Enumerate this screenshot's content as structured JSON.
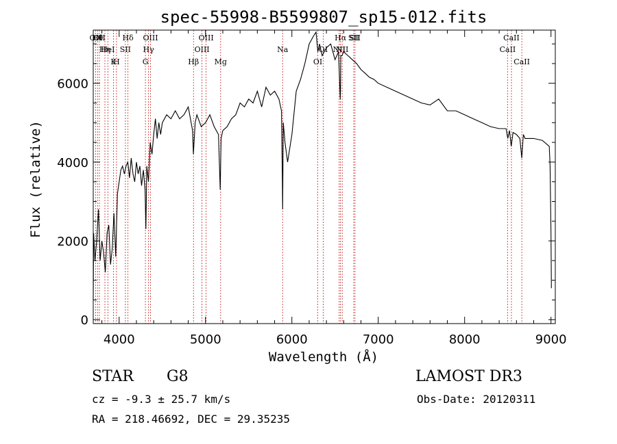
{
  "chart_data": {
    "type": "line",
    "title": "spec-55998-B5599807_sp15-012.fits",
    "xlabel": "Wavelength (Å)",
    "ylabel": "Flux (relative)",
    "xlim": [
      3700,
      9050
    ],
    "ylim": [
      -100,
      7350
    ],
    "xticks": [
      4000,
      5000,
      6000,
      7000,
      8000,
      9000
    ],
    "yticks": [
      0,
      2000,
      4000,
      6000
    ],
    "series": [
      {
        "name": "flux",
        "x": [
          3700,
          3705,
          3720,
          3740,
          3760,
          3780,
          3800,
          3820,
          3840,
          3860,
          3880,
          3900,
          3920,
          3940,
          3960,
          3980,
          4000,
          4020,
          4040,
          4060,
          4080,
          4100,
          4120,
          4140,
          4160,
          4180,
          4200,
          4220,
          4240,
          4260,
          4280,
          4300,
          4310,
          4320,
          4340,
          4360,
          4380,
          4400,
          4420,
          4440,
          4460,
          4480,
          4500,
          4550,
          4600,
          4650,
          4700,
          4750,
          4800,
          4850,
          4860,
          4880,
          4900,
          4950,
          5000,
          5050,
          5100,
          5150,
          5170,
          5180,
          5200,
          5250,
          5300,
          5350,
          5400,
          5450,
          5500,
          5550,
          5600,
          5650,
          5700,
          5750,
          5800,
          5850,
          5880,
          5890,
          5893,
          5896,
          5900,
          5920,
          5950,
          6000,
          6050,
          6100,
          6150,
          6200,
          6250,
          6280,
          6300,
          6320,
          6350,
          6400,
          6450,
          6500,
          6540,
          6560,
          6563,
          6566,
          6580,
          6600,
          6650,
          6700,
          6750,
          6800,
          6850,
          6900,
          6950,
          7000,
          7100,
          7200,
          7300,
          7400,
          7500,
          7600,
          7700,
          7800,
          7900,
          8000,
          8100,
          8200,
          8300,
          8400,
          8480,
          8500,
          8520,
          8540,
          8560,
          8600,
          8640,
          8662,
          8680,
          8700,
          8800,
          8900,
          8980,
          8990,
          9000,
          9005
        ],
        "values": [
          500,
          2200,
          1500,
          2000,
          2800,
          1500,
          2000,
          1700,
          1200,
          2200,
          2400,
          1400,
          1800,
          2700,
          1600,
          3200,
          3500,
          3800,
          3900,
          3700,
          3900,
          4000,
          3600,
          4100,
          3700,
          3500,
          4000,
          3700,
          3900,
          3400,
          3800,
          3300,
          2300,
          3900,
          3500,
          4500,
          4200,
          4700,
          5100,
          4600,
          5000,
          4700,
          5000,
          5200,
          5100,
          5300,
          5100,
          5200,
          5400,
          4800,
          4200,
          5000,
          5200,
          4900,
          5000,
          5200,
          4900,
          4700,
          3300,
          4600,
          4800,
          4900,
          5100,
          5200,
          5500,
          5400,
          5600,
          5500,
          5800,
          5400,
          5900,
          5700,
          5800,
          5600,
          5300,
          3500,
          2800,
          3800,
          5000,
          4500,
          4000,
          4700,
          5800,
          6100,
          6500,
          7000,
          7200,
          7300,
          6800,
          7000,
          6700,
          6900,
          7000,
          6600,
          6800,
          5600,
          5800,
          6700,
          6700,
          6800,
          6700,
          6600,
          6500,
          6350,
          6250,
          6150,
          6100,
          6000,
          5900,
          5800,
          5700,
          5600,
          5500,
          5450,
          5600,
          5300,
          5300,
          5200,
          5100,
          5000,
          4900,
          4850,
          4850,
          4600,
          4800,
          4400,
          4750,
          4700,
          4600,
          4100,
          4700,
          4600,
          4600,
          4550,
          4400,
          3900,
          2200,
          800
        ]
      }
    ],
    "lines": [
      {
        "wl": 3727,
        "label": "OII"
      },
      {
        "wl": 3750,
        "label": "Hθ"
      },
      {
        "wl": 3771,
        "label": "OII"
      },
      {
        "wl": 3835,
        "label": "Hη"
      },
      {
        "wl": 3869,
        "label": "HeI"
      },
      {
        "wl": 3934,
        "label": "K"
      },
      {
        "wl": 3969,
        "label": "H"
      },
      {
        "wl": 4072,
        "label": "SII"
      },
      {
        "wl": 4102,
        "label": "Hδ"
      },
      {
        "wl": 4304,
        "label": "G"
      },
      {
        "wl": 4340,
        "label": "Hγ"
      },
      {
        "wl": 4363,
        "label": "OIII"
      },
      {
        "wl": 4861,
        "label": "Hβ"
      },
      {
        "wl": 4959,
        "label": "OIII"
      },
      {
        "wl": 5007,
        "label": "OIII"
      },
      {
        "wl": 5175,
        "label": "Mg"
      },
      {
        "wl": 5893,
        "label": "Na"
      },
      {
        "wl": 6300,
        "label": "OI"
      },
      {
        "wl": 6363,
        "label": "OI"
      },
      {
        "wl": 6548,
        "label": "NII"
      },
      {
        "wl": 6563,
        "label": "Hα"
      },
      {
        "wl": 6583,
        "label": "NII"
      },
      {
        "wl": 6716,
        "label": "SII"
      },
      {
        "wl": 6731,
        "label": "SII"
      },
      {
        "wl": 8498,
        "label": "CaII"
      },
      {
        "wl": 8542,
        "label": "CaII"
      },
      {
        "wl": 8662,
        "label": "CaII"
      }
    ]
  },
  "info": {
    "classification": "STAR",
    "subclass": "G8",
    "survey": "LAMOST DR3",
    "cz": "cz = -9.3 ± 25.7 km/s",
    "obs_date": "Obs-Date: 20120311",
    "coords": "RA = 218.46692, DEC =  29.35235"
  },
  "colors": {
    "line_marker": "#cc2222",
    "spectrum": "#000000"
  }
}
